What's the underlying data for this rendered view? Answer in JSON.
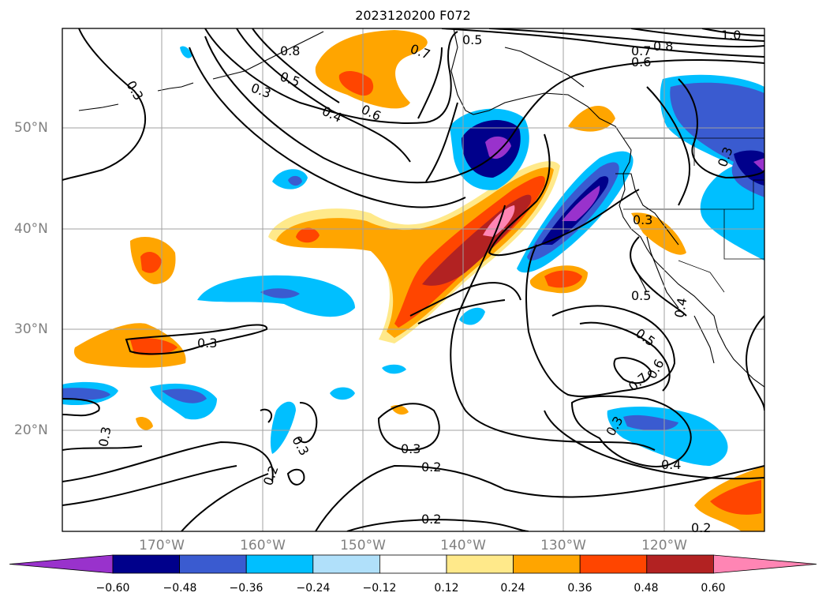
{
  "title": "2023120200 F072",
  "lat_labels": [
    "50°N",
    "40°N",
    "30°N",
    "20°N"
  ],
  "lon_labels": [
    "170°W",
    "160°W",
    "150°W",
    "140°W",
    "130°W",
    "120°W"
  ],
  "colorbar": {
    "ticks": [
      "−0.60",
      "−0.48",
      "−0.36",
      "−0.24",
      "−0.12",
      "0.12",
      "0.24",
      "0.36",
      "0.48",
      "0.60"
    ],
    "colors": [
      "#9932cc",
      "#00008b",
      "#3a5bd0",
      "#00bfff",
      "#b0e0fa",
      "#ffffff",
      "#ffe98a",
      "#ffa500",
      "#ff4500",
      "#b22222",
      "#ff85b4"
    ]
  },
  "contour_labels": [
    "0.3",
    "0.8",
    "0.5",
    "0.3",
    "0.4",
    "0.6",
    "0.7",
    "0.5",
    "0.7",
    "0.8",
    "0.6",
    "1.0",
    "0.3",
    "0.3",
    "0.5",
    "0.4",
    "0.5",
    "0.6",
    "0.7",
    "0.3",
    "0.3",
    "0.3",
    "0.2",
    "0.3",
    "0.2",
    "0.2",
    "0.4",
    "0.2",
    "0.3"
  ]
}
